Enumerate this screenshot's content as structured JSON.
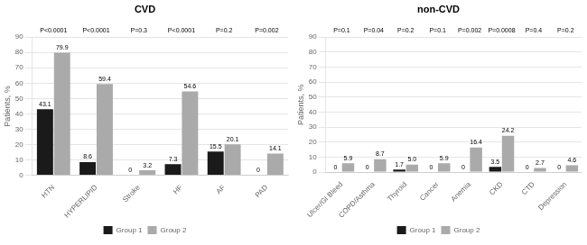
{
  "chart_data": [
    {
      "type": "bar",
      "title": "CVD",
      "categories": [
        "HTN",
        "HYPERLIPID",
        "Stroke",
        "HF",
        "AF",
        "PAD"
      ],
      "series": [
        {
          "name": "Group 1",
          "color": "#1a1a1a",
          "values": [
            43.1,
            8.6,
            0,
            7.3,
            15.5,
            0
          ],
          "value_labels": [
            "43.1",
            "8.6",
            "0",
            "7.3",
            "15.5",
            "0"
          ]
        },
        {
          "name": "Group 2",
          "color": "#aaaaaa",
          "values": [
            79.9,
            59.4,
            3.2,
            54.6,
            20.1,
            14.1
          ],
          "value_labels": [
            "79.9",
            "59.4",
            "3.2",
            "54.6",
            "20.1",
            "14.1"
          ]
        }
      ],
      "annotations": [
        "P<0.0001",
        "P<0.0001",
        "P=0.3",
        "P<0.0001",
        "P=0.2",
        "P=0.002"
      ],
      "ylabel": "Patients, %",
      "ylim": [
        0,
        90
      ],
      "yticks": [
        0,
        10,
        20,
        30,
        40,
        50,
        60,
        70,
        80,
        90
      ],
      "grid": true,
      "data_labels": true,
      "legend": "bottom"
    },
    {
      "type": "bar",
      "title": "non-CVD",
      "categories": [
        "Ulcer/GI Bleed",
        "COPD/Asthma",
        "Thyroid",
        "Cancer",
        "Anemia",
        "CKD",
        "CTD",
        "Depression"
      ],
      "series": [
        {
          "name": "Group 1",
          "color": "#1a1a1a",
          "values": [
            0,
            0,
            1.7,
            0,
            0,
            3.5,
            0,
            0
          ],
          "value_labels": [
            "0",
            "0",
            "1.7",
            "0",
            "0",
            "3.5",
            "0",
            "0"
          ]
        },
        {
          "name": "Group 2",
          "color": "#aaaaaa",
          "values": [
            5.9,
            8.7,
            5.0,
            5.9,
            16.4,
            24.2,
            2.7,
            4.6
          ],
          "value_labels": [
            "5.9",
            "8.7",
            "5.0",
            "5.9",
            "16.4",
            "24.2",
            "2.7",
            "4.6"
          ]
        }
      ],
      "annotations": [
        "P=0.1",
        "P=0.04",
        "P=0.2",
        "P=0.1",
        "P=0.002",
        "P=0.0008",
        "P=0.4",
        "P=0.2"
      ],
      "ylabel": "Patients, %",
      "ylim": [
        0,
        90
      ],
      "yticks": [
        0,
        10,
        20,
        30,
        40,
        50,
        60,
        70,
        80,
        90
      ],
      "grid": true,
      "data_labels": true,
      "legend": "bottom"
    }
  ]
}
